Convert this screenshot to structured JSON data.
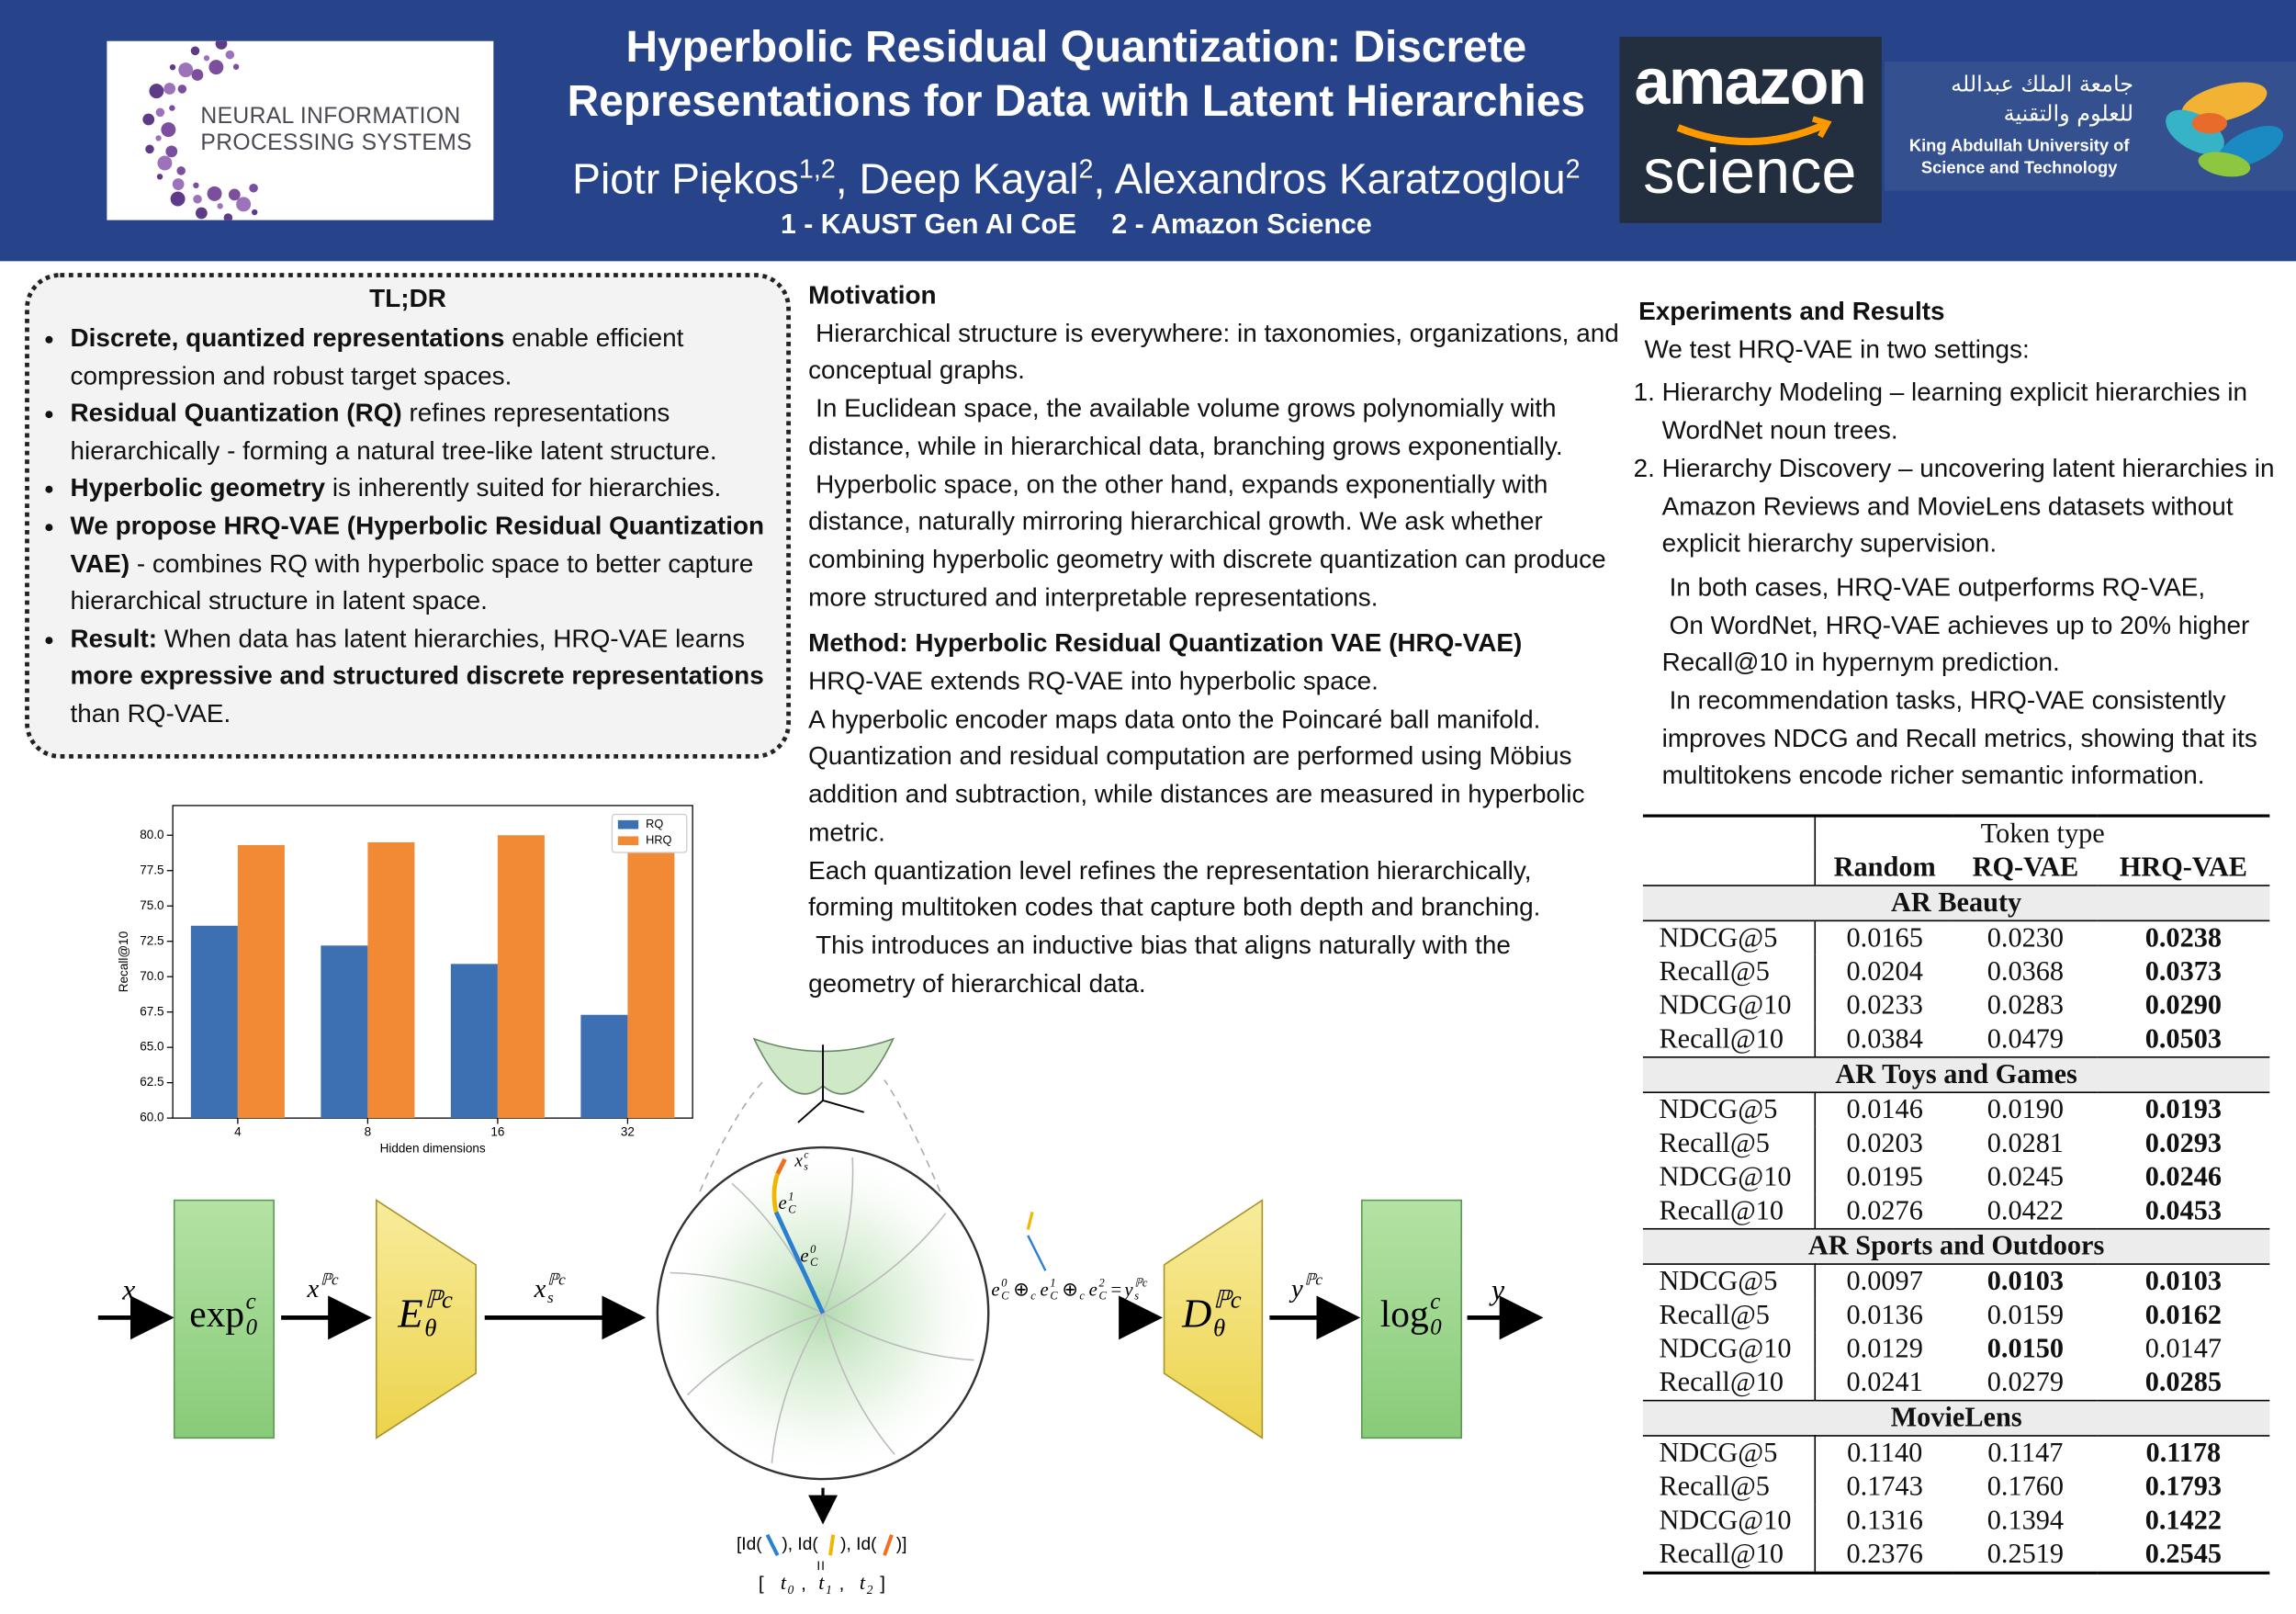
{
  "header": {
    "title_lines": [
      "Hyperbolic Residual Quantization: Discrete",
      "Representations for Data with Latent Hierarchies"
    ],
    "authors": [
      {
        "name": "Piotr Piękos",
        "aff": "1,2"
      },
      {
        "name": ", Deep Kayal",
        "aff": "2"
      },
      {
        "name": ", Alexandros Karatzoglou",
        "aff": "2"
      }
    ],
    "affiliations": [
      "1 - KAUST Gen AI CoE",
      "2 - Amazon Science"
    ],
    "logos": {
      "neurips": [
        "NEURAL INFORMATION",
        "PROCESSING SYSTEMS"
      ],
      "amazon": [
        "amazon",
        "science"
      ],
      "kaust": [
        "جامعة الملك عبدالله",
        "للعلوم والتقنية",
        "King Abdullah University of",
        "Science and Technology"
      ]
    }
  },
  "tldr": {
    "title": "TL;DR",
    "bullets": [
      [
        {
          "text": "Discrete, quantized representations",
          "bold": true
        },
        {
          "text": " enable efficient compression and robust target spaces."
        }
      ],
      [
        {
          "text": "Residual Quantization (RQ)",
          "bold": true
        },
        {
          "text": " refines representations hierarchically - forming a natural tree-like latent structure."
        }
      ],
      [
        {
          "text": "Hyperbolic geometry",
          "bold": true
        },
        {
          "text": " is inherently suited for hierarchies."
        }
      ],
      [
        {
          "text": "We propose HRQ-VAE (Hyperbolic Residual Quantization VAE)",
          "bold": true
        },
        {
          "text": " - combines RQ with hyperbolic space to better capture hierarchical structure in latent space."
        }
      ],
      [
        {
          "text": "Result:",
          "bold": true
        },
        {
          "text": " When data has latent hierarchies, HRQ-VAE learns "
        },
        {
          "text": "more expressive and structured discrete representations",
          "bold": true
        },
        {
          "text": " than RQ-VAE."
        }
      ]
    ]
  },
  "motivation": {
    "title": "Motivation",
    "paragraphs": [
      "Hierarchical structure is everywhere: in taxonomies, organizations, and conceptual graphs.",
      "In Euclidean space, the available volume grows polynomially with distance, while in hierarchical data, branching grows exponentially.",
      "Hyperbolic space, on the other hand, expands exponentially with distance, naturally mirroring hierarchical growth. We ask whether combining hyperbolic geometry with discrete quantization can produce more structured and interpretable representations."
    ]
  },
  "method": {
    "title": "Method: Hyperbolic Residual Quantization VAE (HRQ-VAE)",
    "paragraphs": [
      "HRQ-VAE extends RQ-VAE into hyperbolic space.",
      "A hyperbolic encoder maps data onto the Poincaré ball manifold. Quantization and residual computation are performed using Möbius addition and subtraction, while distances are measured in hyperbolic metric.",
      "Each quantization level refines the representation hierarchically, forming multitoken codes that capture both depth and branching.",
      "This introduces an inductive bias that aligns naturally with the geometry of hierarchical data."
    ]
  },
  "experiments": {
    "title": "Experiments and Results",
    "intro": "We test HRQ-VAE in two settings:",
    "list": [
      "Hierarchy Modeling – learning explicit hierarchies in WordNet noun trees.",
      "Hierarchy Discovery – uncovering latent hierarchies in Amazon Reviews and MovieLens datasets without explicit hierarchy supervision."
    ],
    "paragraphs": [
      "In both cases, HRQ-VAE outperforms RQ-VAE,",
      "On WordNet, HRQ-VAE achieves up to 20% higher Recall@10 in hypernym prediction.",
      "In recommendation tasks, HRQ-VAE consistently improves NDCG and Recall metrics, showing that its multitokens encode richer semantic information."
    ]
  },
  "table": {
    "group_header": "Token type",
    "columns": [
      "Random",
      "RQ-VAE",
      "HRQ-VAE"
    ],
    "sections": [
      {
        "name": "AR Beauty",
        "rows": [
          {
            "metric": "NDCG@5",
            "values": [
              "0.0165",
              "0.0230",
              "0.0238"
            ],
            "bold": [
              2
            ]
          },
          {
            "metric": "Recall@5",
            "values": [
              "0.0204",
              "0.0368",
              "0.0373"
            ],
            "bold": [
              2
            ]
          },
          {
            "metric": "NDCG@10",
            "values": [
              "0.0233",
              "0.0283",
              "0.0290"
            ],
            "bold": [
              2
            ]
          },
          {
            "metric": "Recall@10",
            "values": [
              "0.0384",
              "0.0479",
              "0.0503"
            ],
            "bold": [
              2
            ]
          }
        ]
      },
      {
        "name": "AR Toys and Games",
        "rows": [
          {
            "metric": "NDCG@5",
            "values": [
              "0.0146",
              "0.0190",
              "0.0193"
            ],
            "bold": [
              2
            ]
          },
          {
            "metric": "Recall@5",
            "values": [
              "0.0203",
              "0.0281",
              "0.0293"
            ],
            "bold": [
              2
            ]
          },
          {
            "metric": "NDCG@10",
            "values": [
              "0.0195",
              "0.0245",
              "0.0246"
            ],
            "bold": [
              2
            ]
          },
          {
            "metric": "Recall@10",
            "values": [
              "0.0276",
              "0.0422",
              "0.0453"
            ],
            "bold": [
              2
            ]
          }
        ]
      },
      {
        "name": "AR Sports and Outdoors",
        "rows": [
          {
            "metric": "NDCG@5",
            "values": [
              "0.0097",
              "0.0103",
              "0.0103"
            ],
            "bold": [
              1,
              2
            ]
          },
          {
            "metric": "Recall@5",
            "values": [
              "0.0136",
              "0.0159",
              "0.0162"
            ],
            "bold": [
              2
            ]
          },
          {
            "metric": "NDCG@10",
            "values": [
              "0.0129",
              "0.0150",
              "0.0147"
            ],
            "bold": [
              1
            ]
          },
          {
            "metric": "Recall@10",
            "values": [
              "0.0241",
              "0.0279",
              "0.0285"
            ],
            "bold": [
              2
            ]
          }
        ]
      },
      {
        "name": "MovieLens",
        "rows": [
          {
            "metric": "NDCG@5",
            "values": [
              "0.1140",
              "0.1147",
              "0.1178"
            ],
            "bold": [
              2
            ]
          },
          {
            "metric": "Recall@5",
            "values": [
              "0.1743",
              "0.1760",
              "0.1793"
            ],
            "bold": [
              2
            ]
          },
          {
            "metric": "NDCG@10",
            "values": [
              "0.1316",
              "0.1394",
              "0.1422"
            ],
            "bold": [
              2
            ]
          },
          {
            "metric": "Recall@10",
            "values": [
              "0.2376",
              "0.2519",
              "0.2545"
            ],
            "bold": [
              2
            ]
          }
        ]
      }
    ]
  },
  "chart_data": {
    "type": "bar",
    "x_label": "Hidden dimensions",
    "y_label": "Recall@10",
    "categories": [
      "4",
      "8",
      "16",
      "32"
    ],
    "series": [
      {
        "name": "RQ",
        "color": "#3d70b2",
        "values": [
          73.6,
          72.2,
          70.9,
          67.3
        ]
      },
      {
        "name": "HRQ",
        "color": "#f28a35",
        "values": [
          79.3,
          79.5,
          80.0,
          79.2
        ]
      }
    ],
    "ylim": [
      60,
      82.1
    ],
    "yticks": [
      {
        "value": 60,
        "label": "60.0"
      },
      62.5,
      {
        "value": 65,
        "label": "65.0"
      },
      67.5,
      {
        "value": 70,
        "label": "70.0"
      },
      72.5,
      {
        "value": 75,
        "label": "75.0"
      },
      77.5,
      {
        "value": 80,
        "label": "80.0"
      }
    ],
    "legend": "upper right"
  },
  "diagram": {
    "labels": {
      "input": {
        "base": "x"
      },
      "exp": {
        "base": "exp",
        "sub": "0",
        "sup": "c"
      },
      "x_p": {
        "base": "x",
        "sup": "ℙc"
      },
      "encoder": {
        "base": "E",
        "sub": "θ",
        "sup": "ℙc"
      },
      "x_s": {
        "base": "x",
        "sub": "s",
        "sup": "ℙc"
      },
      "decoder": {
        "base": "D",
        "sub": "θ",
        "sup": "ℙc"
      },
      "y_p": {
        "base": "y",
        "sup": "ℙc"
      },
      "log": {
        "base": "log",
        "sub": "0",
        "sup": "c"
      },
      "output": {
        "base": "y"
      },
      "e0": {
        "base": "e",
        "sub": "C",
        "sup": "0"
      },
      "e1": {
        "base": "e",
        "sub": "C",
        "sup": "1"
      },
      "xs_ball": {
        "base": "x",
        "sub": "s",
        "sup": "c"
      }
    },
    "equation": [
      {
        "base": "e",
        "sub": "C",
        "sup": "0"
      },
      {
        "base": "⊕",
        "sub": "c"
      },
      {
        "base": "e",
        "sub": "C",
        "sup": "1"
      },
      {
        "base": "⊕",
        "sub": "c"
      },
      {
        "base": "e",
        "sub": "C",
        "sup": "2"
      },
      {
        "base": "=",
        "sub": ""
      },
      {
        "base": "y",
        "sub": "s",
        "sup": "ℙc"
      }
    ],
    "id_parts": [
      "[Id(",
      "), Id(",
      "), Id(",
      ")]"
    ],
    "token_punct": [
      "[",
      ",",
      ",",
      "]"
    ],
    "tokens": [
      {
        "base": "t",
        "sub": "0"
      },
      {
        "base": "t",
        "sub": "1"
      },
      {
        "base": "t",
        "sub": "2"
      }
    ]
  }
}
